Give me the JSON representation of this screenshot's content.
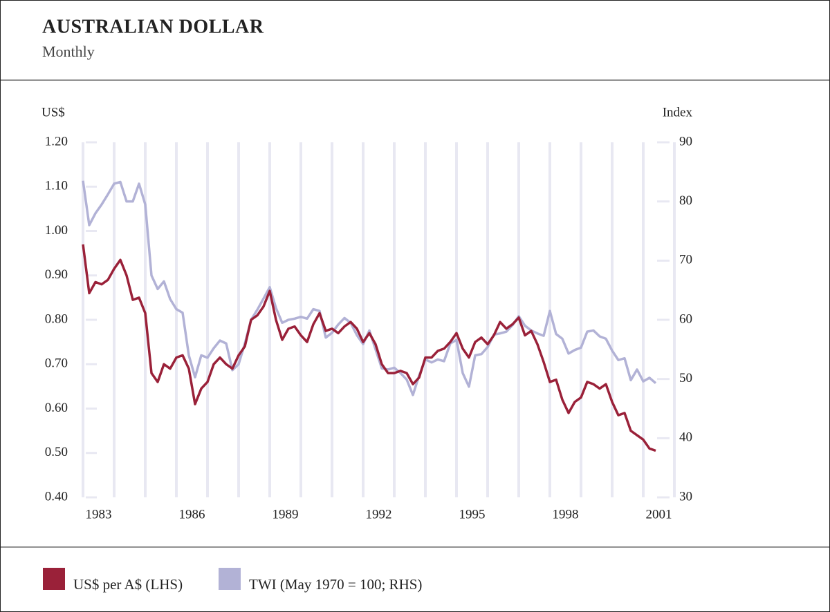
{
  "chart_data": {
    "type": "line",
    "title": "AUSTRALIAN DOLLAR",
    "subtitle": "Monthly",
    "y_label": "US$",
    "y2_label": "Index",
    "x": [
      1983,
      1983.2,
      1983.4,
      1983.6,
      1983.8,
      1984,
      1984.2,
      1984.4,
      1984.6,
      1984.8,
      1985,
      1985.2,
      1985.4,
      1985.6,
      1985.8,
      1986,
      1986.2,
      1986.4,
      1986.6,
      1986.8,
      1987,
      1987.2,
      1987.4,
      1987.6,
      1987.8,
      1988,
      1988.2,
      1988.4,
      1988.6,
      1988.8,
      1989,
      1989.2,
      1989.4,
      1989.6,
      1989.8,
      1990,
      1990.2,
      1990.4,
      1990.6,
      1990.8,
      1991,
      1991.2,
      1991.4,
      1991.6,
      1991.8,
      1992,
      1992.2,
      1992.4,
      1992.6,
      1992.8,
      1993,
      1993.2,
      1993.4,
      1993.6,
      1993.8,
      1994,
      1994.2,
      1994.4,
      1994.6,
      1994.8,
      1995,
      1995.2,
      1995.4,
      1995.6,
      1995.8,
      1996,
      1996.2,
      1996.4,
      1996.6,
      1996.8,
      1997,
      1997.2,
      1997.4,
      1997.6,
      1997.8,
      1998,
      1998.2,
      1998.4,
      1998.6,
      1998.8,
      1999,
      1999.2,
      1999.4,
      1999.6,
      1999.8,
      2000,
      2000.2,
      2000.4,
      2000.6,
      2000.8,
      2001,
      2001.2,
      2001.4
    ],
    "series": [
      {
        "name": "US$ per A$ (LHS)",
        "color": "#9a2139",
        "values": [
          0.97,
          0.86,
          0.885,
          0.88,
          0.89,
          0.915,
          0.935,
          0.9,
          0.845,
          0.85,
          0.815,
          0.68,
          0.66,
          0.7,
          0.69,
          0.715,
          0.72,
          0.69,
          0.61,
          0.645,
          0.66,
          0.7,
          0.715,
          0.7,
          0.69,
          0.72,
          0.74,
          0.8,
          0.81,
          0.83,
          0.865,
          0.8,
          0.755,
          0.78,
          0.785,
          0.765,
          0.75,
          0.79,
          0.815,
          0.775,
          0.78,
          0.77,
          0.785,
          0.795,
          0.78,
          0.75,
          0.77,
          0.745,
          0.7,
          0.68,
          0.68,
          0.685,
          0.68,
          0.655,
          0.67,
          0.715,
          0.715,
          0.73,
          0.735,
          0.75,
          0.77,
          0.735,
          0.715,
          0.75,
          0.76,
          0.745,
          0.765,
          0.795,
          0.78,
          0.79,
          0.805,
          0.765,
          0.775,
          0.745,
          0.705,
          0.66,
          0.665,
          0.62,
          0.59,
          0.615,
          0.625,
          0.66,
          0.655,
          0.645,
          0.655,
          0.615,
          0.585,
          0.59,
          0.55,
          0.54,
          0.53,
          0.51,
          0.505
        ]
      },
      {
        "name": "TWI (May 1970 = 100; RHS)",
        "color": "#b2b2d6",
        "axis": "y2",
        "values": [
          83.5,
          76,
          78,
          79.5,
          81.2,
          83,
          83.3,
          80,
          80,
          83,
          79.5,
          67.5,
          65.2,
          66.5,
          63.5,
          61.8,
          61.2,
          54,
          50.3,
          54,
          53.6,
          55.2,
          56.5,
          56,
          51.5,
          52.5,
          56,
          60,
          61.7,
          63.6,
          65.5,
          62,
          59.5,
          60,
          60.2,
          60.5,
          60.2,
          61.8,
          61.5,
          57,
          57.8,
          59.2,
          60.3,
          59.5,
          57.4,
          55.9,
          58.2,
          55,
          51.8,
          51.6,
          51.9,
          51,
          49.9,
          47.3,
          50.6,
          53.3,
          52.8,
          53.3,
          53,
          56,
          56.6,
          51,
          48.7,
          54,
          54.2,
          55.4,
          57.5,
          57.7,
          58,
          59.1,
          60.6,
          59,
          58.2,
          57.7,
          57.3,
          61.5,
          57.6,
          56.8,
          54.3,
          54.9,
          55.3,
          58,
          58.2,
          57.2,
          56.8,
          54.8,
          53.2,
          53.5,
          49.8,
          51.6,
          49.6,
          50.2,
          49.3
        ]
      }
    ],
    "xlim": [
      1983,
      2002
    ],
    "xticks": [
      {
        "value": 1983.5,
        "label": "1983"
      },
      {
        "value": 1986.5,
        "label": "1986"
      },
      {
        "value": 1989.5,
        "label": "1989"
      },
      {
        "value": 1992.5,
        "label": "1992"
      },
      {
        "value": 1995.5,
        "label": "1995"
      },
      {
        "value": 1998.5,
        "label": "1998"
      },
      {
        "value": 2001.5,
        "label": "2001"
      }
    ],
    "xgrid": [
      1983,
      1984,
      1985,
      1986,
      1987,
      1988,
      1989,
      1990,
      1991,
      1992,
      1993,
      1994,
      1995,
      1996,
      1997,
      1998,
      1999,
      2000,
      2001,
      2002
    ],
    "ylim": [
      0.4,
      1.2
    ],
    "yticks": [
      {
        "value": 0.4,
        "label": "0.40"
      },
      {
        "value": 0.5,
        "label": "0.50"
      },
      {
        "value": 0.6,
        "label": "0.60"
      },
      {
        "value": 0.7,
        "label": "0.70"
      },
      {
        "value": 0.8,
        "label": "0.80"
      },
      {
        "value": 0.9,
        "label": "0.90"
      },
      {
        "value": 1.0,
        "label": "1.00"
      },
      {
        "value": 1.1,
        "label": "1.10"
      },
      {
        "value": 1.2,
        "label": "1.20"
      }
    ],
    "y2lim": [
      30,
      90
    ],
    "y2ticks": [
      30,
      40,
      50,
      60,
      70,
      80,
      90
    ]
  }
}
